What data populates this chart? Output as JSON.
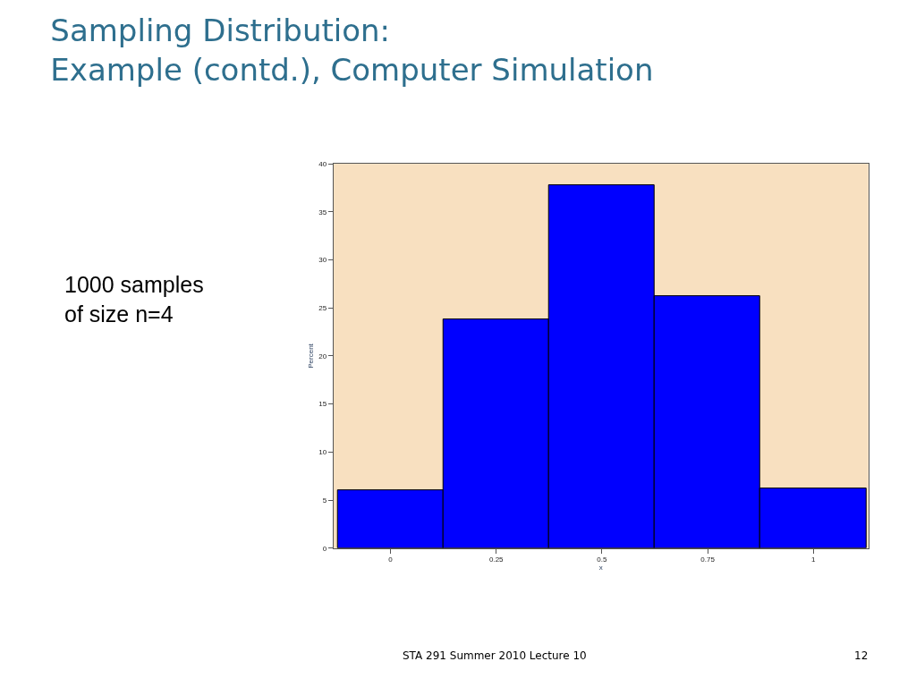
{
  "chart_data": {
    "type": "histogram",
    "title": "Sampling Distribution:\nExample (contd.), Computer Simulation",
    "xlabel": "x",
    "ylabel": "Percent",
    "bins": [
      -0.125,
      0.125,
      0.375,
      0.625,
      0.875,
      1.125
    ],
    "values": [
      6,
      23.8,
      37.8,
      26.2,
      6.2
    ],
    "color": "#0000ff",
    "xlim": [
      -0.135,
      1.13
    ],
    "xticks": [
      0,
      0.25,
      0.5,
      0.75,
      1
    ],
    "ylim": [
      0,
      40
    ],
    "yticks": [
      0,
      5,
      10,
      15,
      20,
      25,
      30,
      35,
      40
    ],
    "annotations": [
      "1000 samples\nof size n=4",
      "STA 291 Summer 2010 Lecture 10",
      "12"
    ]
  }
}
